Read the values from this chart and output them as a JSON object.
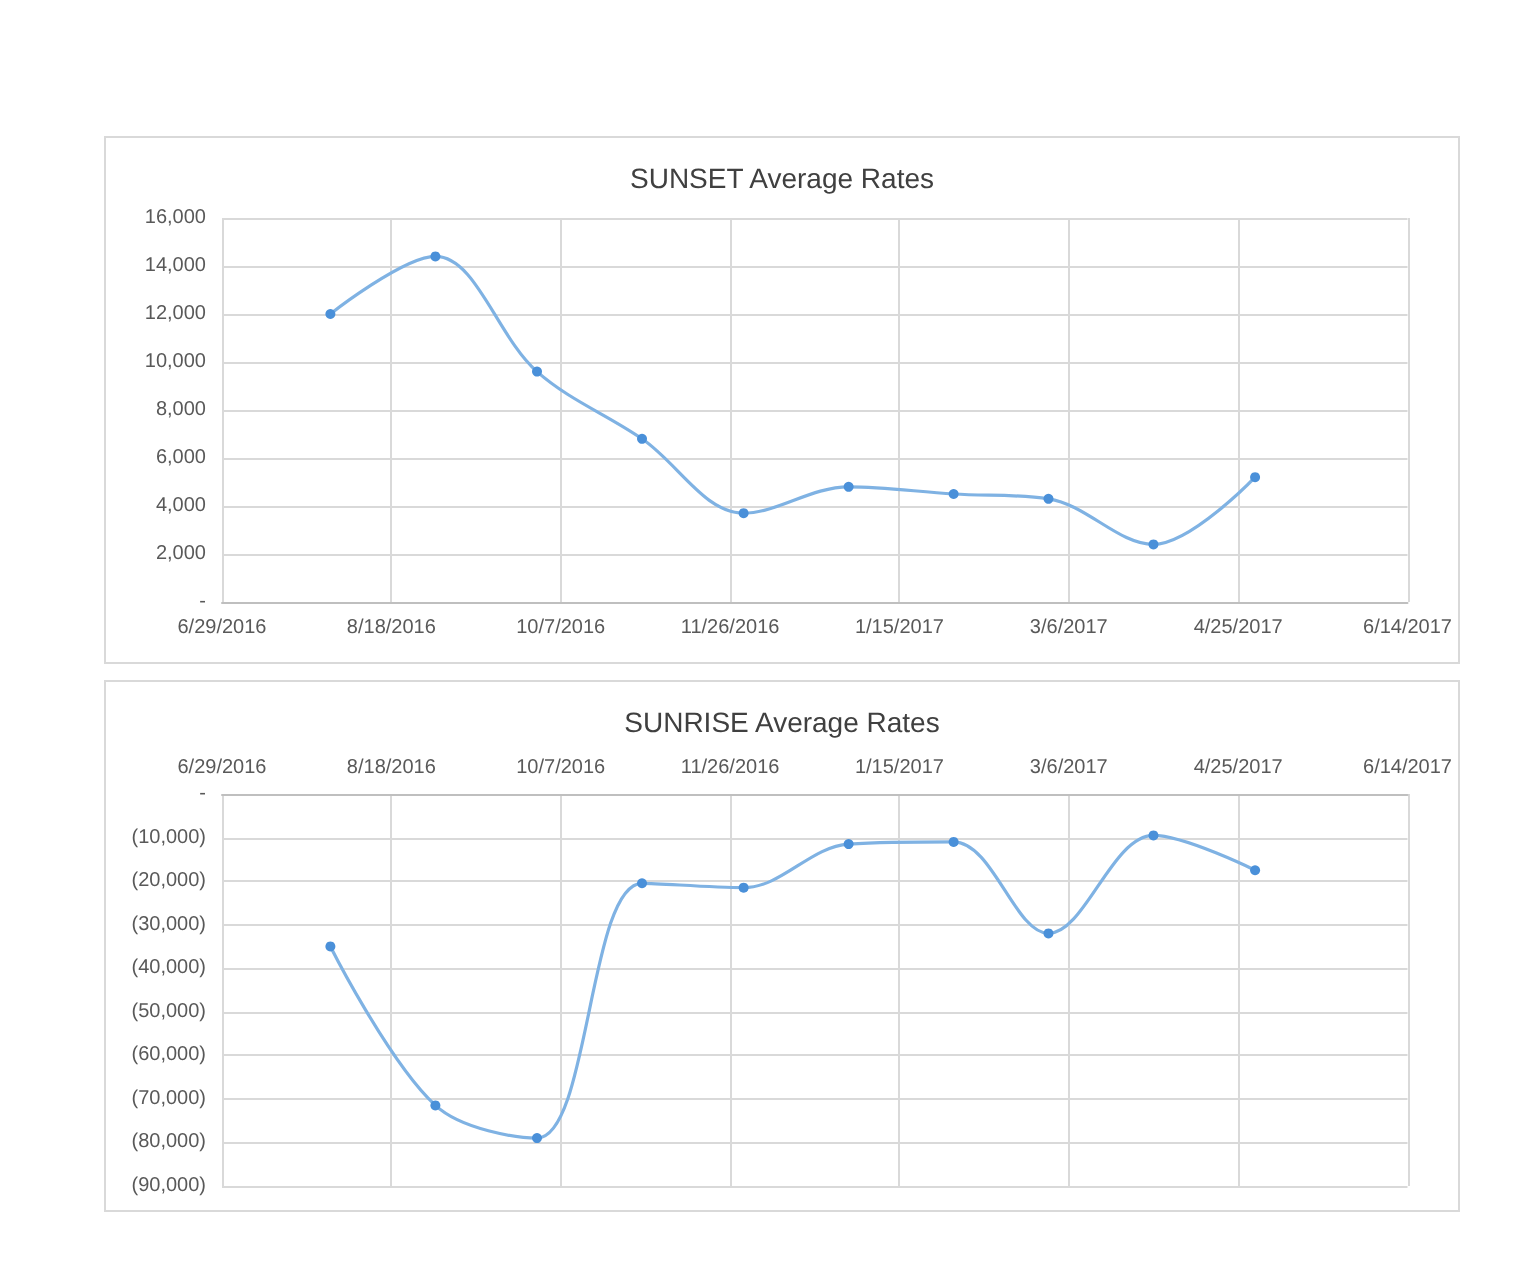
{
  "chart_data": [
    {
      "type": "line",
      "title": "SUNSET Average Rates",
      "x": [
        "2016-07-31",
        "2016-08-31",
        "2016-09-30",
        "2016-10-31",
        "2016-11-30",
        "2016-12-31",
        "2017-01-31",
        "2017-02-28",
        "2017-03-31",
        "2017-04-30"
      ],
      "series": [
        {
          "color": "#7fb2e3",
          "values": [
            12000,
            14400,
            9600,
            6800,
            3700,
            4800,
            4500,
            4300,
            2400,
            5200
          ]
        }
      ],
      "xlim": [
        "2016-06-29",
        "2017-06-14"
      ],
      "xticks": [
        {
          "value": "2016-06-29",
          "label": "6/29/2016"
        },
        {
          "value": "2016-08-18",
          "label": "8/18/2016"
        },
        {
          "value": "2016-10-07",
          "label": "10/7/2016"
        },
        {
          "value": "2016-11-26",
          "label": "11/26/2016"
        },
        {
          "value": "2017-01-15",
          "label": "1/15/2017"
        },
        {
          "value": "2017-03-06",
          "label": "3/6/2017"
        },
        {
          "value": "2017-04-25",
          "label": "4/25/2017"
        },
        {
          "value": "2017-06-14",
          "label": "6/14/2017"
        }
      ],
      "ylim": [
        0,
        16000
      ],
      "yticks": [
        {
          "value": 0,
          "label": "-"
        },
        {
          "value": 2000,
          "label": "2,000"
        },
        {
          "value": 4000,
          "label": "4,000"
        },
        {
          "value": 6000,
          "label": "6,000"
        },
        {
          "value": 8000,
          "label": "8,000"
        },
        {
          "value": 10000,
          "label": "10,000"
        },
        {
          "value": 12000,
          "label": "12,000"
        },
        {
          "value": 14000,
          "label": "14,000"
        },
        {
          "value": 16000,
          "label": "16,000"
        }
      ],
      "grid": true,
      "marker": "circle"
    },
    {
      "type": "line",
      "title": "SUNRISE Average Rates",
      "x": [
        "2016-07-31",
        "2016-08-31",
        "2016-09-30",
        "2016-10-31",
        "2016-11-30",
        "2016-12-31",
        "2017-01-31",
        "2017-02-28",
        "2017-03-31",
        "2017-04-30"
      ],
      "series": [
        {
          "color": "#7fb2e3",
          "values": [
            -35000,
            -71500,
            -79000,
            -20500,
            -21500,
            -11500,
            -11000,
            -32000,
            -9500,
            -17500
          ]
        }
      ],
      "xlim": [
        "2016-06-29",
        "2017-06-14"
      ],
      "xticks": [
        {
          "value": "2016-06-29",
          "label": "6/29/2016"
        },
        {
          "value": "2016-08-18",
          "label": "8/18/2016"
        },
        {
          "value": "2016-10-07",
          "label": "10/7/2016"
        },
        {
          "value": "2016-11-26",
          "label": "11/26/2016"
        },
        {
          "value": "2017-01-15",
          "label": "1/15/2017"
        },
        {
          "value": "2017-03-06",
          "label": "3/6/2017"
        },
        {
          "value": "2017-04-25",
          "label": "4/25/2017"
        },
        {
          "value": "2017-06-14",
          "label": "6/14/2017"
        }
      ],
      "ylim": [
        -90000,
        0
      ],
      "yticks": [
        {
          "value": 0,
          "label": "-"
        },
        {
          "value": -10000,
          "label": "(10,000)"
        },
        {
          "value": -20000,
          "label": "(20,000)"
        },
        {
          "value": -30000,
          "label": "(30,000)"
        },
        {
          "value": -40000,
          "label": "(40,000)"
        },
        {
          "value": -50000,
          "label": "(50,000)"
        },
        {
          "value": -60000,
          "label": "(60,000)"
        },
        {
          "value": -70000,
          "label": "(70,000)"
        },
        {
          "value": -80000,
          "label": "(80,000)"
        },
        {
          "value": -90000,
          "label": "(90,000)"
        }
      ],
      "grid": true,
      "marker": "circle"
    }
  ]
}
